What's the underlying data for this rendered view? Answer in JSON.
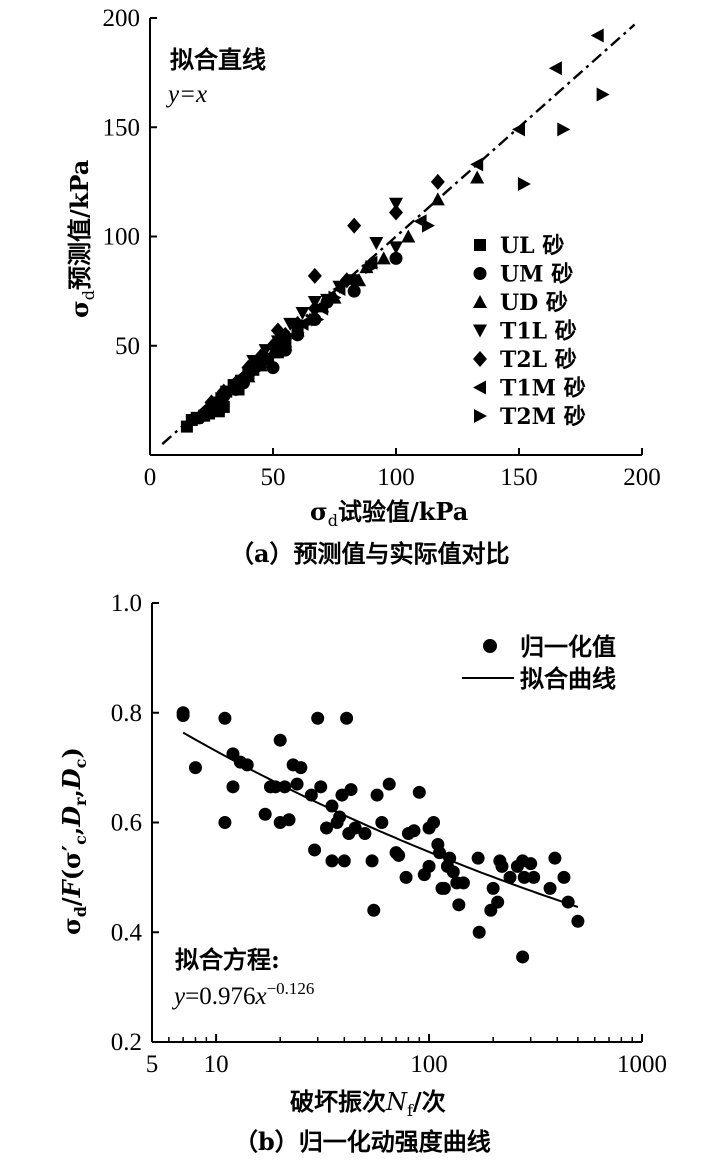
{
  "chart_data": [
    {
      "type": "scatter",
      "panel_caption": "（a）预测值与实际值对比",
      "xlabel_prefix": "σ",
      "xlabel_sub": "d",
      "xlabel_rest": "试验值/kPa",
      "ylabel_prefix": "σ",
      "ylabel_sub": "d",
      "ylabel_rest": "预测值/kPa",
      "xlim": [
        0,
        200
      ],
      "ylim": [
        0,
        200
      ],
      "xticks": [
        "0",
        "50",
        "100",
        "150",
        "200"
      ],
      "yticks": [
        "50",
        "100",
        "150",
        "200"
      ],
      "fit_title": "拟合直线",
      "fit_equation": "y=x",
      "fit_line": {
        "style": "dash-dot",
        "x": [
          5,
          197
        ],
        "y": [
          5,
          197
        ]
      },
      "legend_position": "right",
      "series": [
        {
          "name": "UL 砂",
          "marker": "square",
          "points": [
            [
              15,
              13
            ],
            [
              17,
              16
            ],
            [
              19,
              17
            ],
            [
              22,
              18
            ],
            [
              25,
              22
            ],
            [
              27,
              24
            ],
            [
              29,
              26
            ],
            [
              31,
              29
            ],
            [
              34,
              32
            ],
            [
              37,
              34
            ],
            [
              40,
              37
            ],
            [
              44,
              42
            ],
            [
              48,
              44
            ],
            [
              52,
              47
            ],
            [
              55,
              52
            ],
            [
              60,
              58
            ],
            [
              28,
              20
            ],
            [
              24,
              19
            ],
            [
              30,
              22
            ],
            [
              36,
              30
            ],
            [
              42,
              39
            ]
          ]
        },
        {
          "name": "UM 砂",
          "marker": "circle",
          "points": [
            [
              20,
              17
            ],
            [
              25,
              20
            ],
            [
              30,
              27
            ],
            [
              35,
              30
            ],
            [
              40,
              37
            ],
            [
              50,
              40
            ],
            [
              55,
              48
            ],
            [
              60,
              55
            ],
            [
              67,
              62
            ],
            [
              72,
              70
            ],
            [
              83,
              75
            ],
            [
              100,
              90
            ],
            [
              45,
              42
            ],
            [
              38,
              33
            ]
          ]
        },
        {
          "name": "UD 砂",
          "marker": "triangle-up",
          "points": [
            [
              40,
              36
            ],
            [
              45,
              41
            ],
            [
              50,
              47
            ],
            [
              55,
              52
            ],
            [
              60,
              57
            ],
            [
              65,
              62
            ],
            [
              75,
              72
            ],
            [
              85,
              80
            ],
            [
              95,
              90
            ],
            [
              105,
              100
            ],
            [
              117,
              117
            ],
            [
              133,
              127
            ],
            [
              88,
              86
            ],
            [
              70,
              68
            ]
          ]
        },
        {
          "name": "T1L 砂",
          "marker": "triangle-down",
          "points": [
            [
              42,
              43
            ],
            [
              47,
              48
            ],
            [
              52,
              52
            ],
            [
              57,
              60
            ],
            [
              62,
              65
            ],
            [
              67,
              70
            ],
            [
              77,
              77
            ],
            [
              82,
              80
            ],
            [
              92,
              97
            ],
            [
              100,
              115
            ],
            [
              100,
              95
            ],
            [
              72,
              71
            ]
          ]
        },
        {
          "name": "T2L 砂",
          "marker": "diamond",
          "points": [
            [
              25,
              24
            ],
            [
              30,
              29
            ],
            [
              35,
              33
            ],
            [
              40,
              40
            ],
            [
              45,
              45
            ],
            [
              50,
              50
            ],
            [
              55,
              55
            ],
            [
              60,
              60
            ],
            [
              67,
              67
            ],
            [
              67,
              82
            ],
            [
              83,
              105
            ],
            [
              100,
              111
            ],
            [
              117,
              125
            ],
            [
              80,
              80
            ],
            [
              52,
              57
            ]
          ]
        },
        {
          "name": "T1M 砂",
          "marker": "triangle-left",
          "points": [
            [
              35,
              34
            ],
            [
              40,
              38
            ],
            [
              45,
              43
            ],
            [
              55,
              52
            ],
            [
              62,
              60
            ],
            [
              70,
              67
            ],
            [
              77,
              76
            ],
            [
              90,
              88
            ],
            [
              110,
              107
            ],
            [
              133,
              133
            ],
            [
              150,
              149
            ],
            [
              165,
              177
            ],
            [
              182,
              192
            ]
          ]
        },
        {
          "name": "T2M 砂",
          "marker": "triangle-right",
          "points": [
            [
              45,
              40
            ],
            [
              55,
              48
            ],
            [
              60,
              56
            ],
            [
              68,
              62
            ],
            [
              75,
              72
            ],
            [
              90,
              86
            ],
            [
              113,
              105
            ],
            [
              152,
              124
            ],
            [
              168,
              149
            ],
            [
              184,
              165
            ]
          ]
        }
      ]
    },
    {
      "type": "scatter",
      "xscale": "log",
      "panel_caption": "（b）归一化动强度曲线",
      "xlabel": "破坏振次N_f/次",
      "ylabel": "σ_d/F(σ'_c,D_r,D_c)",
      "xlim": [
        5,
        1000
      ],
      "ylim": [
        0.2,
        1.0
      ],
      "xticks": [
        "5",
        "10",
        "100",
        "1000"
      ],
      "yticks": [
        "0.2",
        "0.4",
        "0.6",
        "0.8",
        "1.0"
      ],
      "legend_position": "top-right",
      "legend": {
        "points_label": "归一化值",
        "line_label": "拟合曲线"
      },
      "equation_label": "拟合方程:",
      "equation": "y=0.976x^-0.126",
      "fit_curve": {
        "a": 0.976,
        "b": -0.126,
        "x_range": [
          7,
          500
        ]
      },
      "points": [
        [
          7,
          0.8
        ],
        [
          7,
          0.795
        ],
        [
          8,
          0.7
        ],
        [
          11,
          0.79
        ],
        [
          11,
          0.6
        ],
        [
          12,
          0.725
        ],
        [
          12,
          0.665
        ],
        [
          13,
          0.71
        ],
        [
          14,
          0.705
        ],
        [
          17,
          0.615
        ],
        [
          18,
          0.665
        ],
        [
          19,
          0.665
        ],
        [
          20,
          0.75
        ],
        [
          20,
          0.6
        ],
        [
          21,
          0.665
        ],
        [
          22,
          0.605
        ],
        [
          23,
          0.705
        ],
        [
          24,
          0.67
        ],
        [
          25,
          0.7
        ],
        [
          28,
          0.65
        ],
        [
          29,
          0.55
        ],
        [
          30,
          0.79
        ],
        [
          31,
          0.665
        ],
        [
          33,
          0.59
        ],
        [
          35,
          0.63
        ],
        [
          35,
          0.53
        ],
        [
          37,
          0.6
        ],
        [
          38,
          0.61
        ],
        [
          39,
          0.65
        ],
        [
          40,
          0.53
        ],
        [
          41,
          0.79
        ],
        [
          42,
          0.58
        ],
        [
          43,
          0.66
        ],
        [
          45,
          0.59
        ],
        [
          50,
          0.58
        ],
        [
          54,
          0.53
        ],
        [
          55,
          0.44
        ],
        [
          57,
          0.65
        ],
        [
          60,
          0.6
        ],
        [
          65,
          0.67
        ],
        [
          70,
          0.545
        ],
        [
          72,
          0.54
        ],
        [
          78,
          0.5
        ],
        [
          80,
          0.58
        ],
        [
          85,
          0.585
        ],
        [
          90,
          0.655
        ],
        [
          95,
          0.505
        ],
        [
          100,
          0.52
        ],
        [
          100,
          0.59
        ],
        [
          105,
          0.6
        ],
        [
          110,
          0.56
        ],
        [
          112,
          0.545
        ],
        [
          115,
          0.48
        ],
        [
          118,
          0.48
        ],
        [
          122,
          0.52
        ],
        [
          125,
          0.535
        ],
        [
          130,
          0.51
        ],
        [
          135,
          0.49
        ],
        [
          138,
          0.45
        ],
        [
          145,
          0.49
        ],
        [
          170,
          0.535
        ],
        [
          172,
          0.4
        ],
        [
          195,
          0.44
        ],
        [
          200,
          0.48
        ],
        [
          210,
          0.455
        ],
        [
          215,
          0.53
        ],
        [
          220,
          0.52
        ],
        [
          240,
          0.5
        ],
        [
          260,
          0.52
        ],
        [
          275,
          0.53
        ],
        [
          275,
          0.355
        ],
        [
          280,
          0.5
        ],
        [
          300,
          0.525
        ],
        [
          310,
          0.5
        ],
        [
          370,
          0.48
        ],
        [
          390,
          0.535
        ],
        [
          430,
          0.5
        ],
        [
          450,
          0.455
        ],
        [
          500,
          0.42
        ]
      ]
    }
  ]
}
